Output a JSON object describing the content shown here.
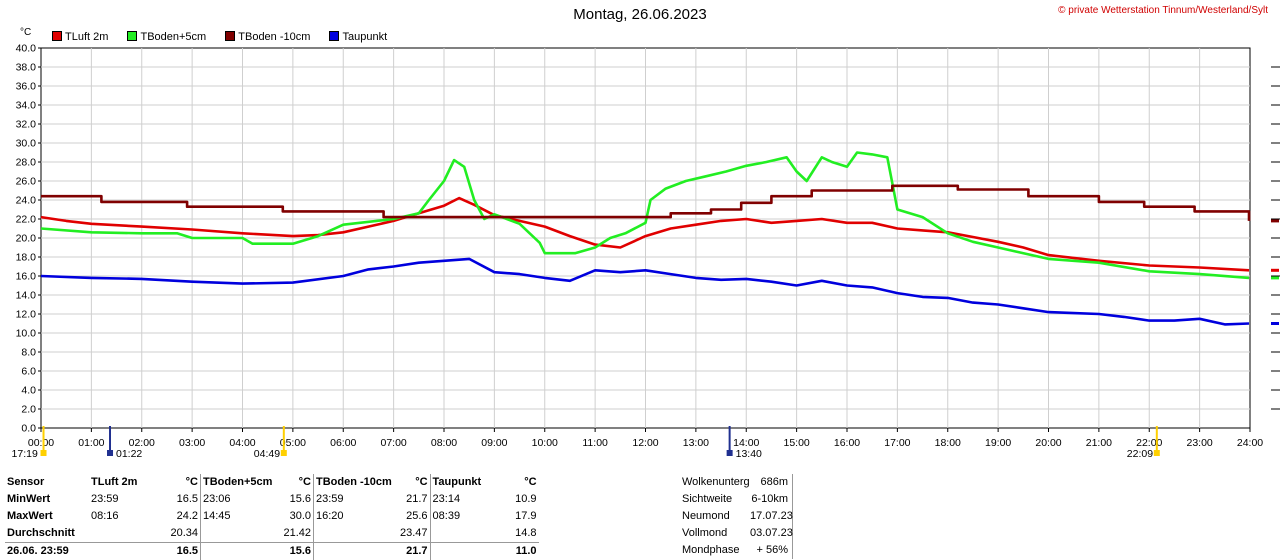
{
  "title": "Montag, 26.06.2023",
  "copyright": "© private Wetterstation Tinnum/Westerland/Sylt",
  "unit": "°C",
  "legend": [
    {
      "name": "TLuft 2m",
      "color": "#e00000"
    },
    {
      "name": "TBoden+5cm",
      "color": "#22ee22"
    },
    {
      "name": "TBoden -10cm",
      "color": "#800000"
    },
    {
      "name": "Taupunkt",
      "color": "#0000dd"
    }
  ],
  "chart_data": {
    "type": "line",
    "xlim": [
      0,
      24
    ],
    "ylim": [
      0,
      40
    ],
    "grid": true,
    "yticks": [
      "0.0",
      "2.0",
      "4.0",
      "6.0",
      "8.0",
      "10.0",
      "12.0",
      "14.0",
      "16.0",
      "18.0",
      "20.0",
      "22.0",
      "24.0",
      "26.0",
      "28.0",
      "30.0",
      "32.0",
      "34.0",
      "36.0",
      "38.0",
      "40.0"
    ],
    "xticks": [
      "00:00",
      "01:00",
      "02:00",
      "03:00",
      "04:00",
      "05:00",
      "06:00",
      "07:00",
      "08:00",
      "09:00",
      "10:00",
      "11:00",
      "12:00",
      "13:00",
      "14:00",
      "15:00",
      "16:00",
      "17:00",
      "18:00",
      "19:00",
      "20:00",
      "21:00",
      "22:00",
      "23:00",
      "24:00"
    ],
    "series": [
      {
        "name": "TLuft 2m",
        "color": "#e00000",
        "x": [
          0,
          0.5,
          1,
          2,
          3,
          4,
          5,
          5.5,
          6,
          6.5,
          7,
          7.5,
          8,
          8.3,
          8.6,
          9,
          9.5,
          10,
          10.5,
          11,
          11.5,
          12,
          12.5,
          13,
          13.5,
          14,
          14.5,
          15,
          15.5,
          16,
          16.5,
          17,
          17.5,
          18,
          18.5,
          19,
          19.5,
          20,
          21,
          22,
          23,
          23.98
        ],
        "y": [
          22.2,
          21.8,
          21.5,
          21.2,
          20.9,
          20.5,
          20.2,
          20.3,
          20.6,
          21.2,
          21.8,
          22.6,
          23.4,
          24.2,
          23.5,
          22.4,
          21.8,
          21.2,
          20.2,
          19.3,
          19.0,
          20.2,
          21.0,
          21.4,
          21.8,
          22.0,
          21.6,
          21.8,
          22.0,
          21.6,
          21.6,
          21.0,
          20.8,
          20.6,
          20.1,
          19.6,
          19.0,
          18.2,
          17.6,
          17.1,
          16.9,
          16.6
        ]
      },
      {
        "name": "TBoden+5cm",
        "color": "#22ee22",
        "x": [
          0,
          1,
          2,
          2.7,
          3,
          4,
          4.2,
          5,
          5.5,
          6,
          7,
          7.5,
          7.7,
          8,
          8.2,
          8.4,
          8.6,
          8.8,
          9,
          9.5,
          9.9,
          10,
          10.6,
          11,
          11.3,
          11.6,
          12,
          12.1,
          12.4,
          12.8,
          13.2,
          13.6,
          14,
          14.4,
          14.8,
          15,
          15.2,
          15.5,
          15.7,
          16,
          16.2,
          16.5,
          16.8,
          17,
          17.5,
          18,
          18.5,
          19,
          20,
          21,
          22,
          23,
          23.98
        ],
        "y": [
          21.0,
          20.6,
          20.5,
          20.5,
          20.0,
          20.0,
          19.4,
          19.4,
          20.2,
          21.4,
          22.0,
          22.6,
          24.0,
          26.0,
          28.2,
          27.5,
          24.0,
          22.0,
          22.5,
          21.5,
          19.5,
          18.4,
          18.4,
          19.0,
          20.0,
          20.5,
          21.6,
          24.0,
          25.2,
          26.0,
          26.5,
          27.0,
          27.6,
          28.0,
          28.5,
          27.0,
          26.0,
          28.5,
          28.0,
          27.5,
          29.0,
          28.8,
          28.5,
          23.0,
          22.2,
          20.5,
          19.6,
          19.0,
          17.8,
          17.4,
          16.5,
          16.2,
          15.8
        ]
      },
      {
        "name": "TBoden -10cm",
        "color": "#800000",
        "x": [
          0,
          1.2,
          1.2,
          2.9,
          2.9,
          4.8,
          4.8,
          6.8,
          6.8,
          12.5,
          12.5,
          13.3,
          13.3,
          13.9,
          13.9,
          14.5,
          14.5,
          15.3,
          15.3,
          16.9,
          16.9,
          18.2,
          18.2,
          19.6,
          19.6,
          21.0,
          21.0,
          21.9,
          21.9,
          22.9,
          22.9,
          23.98,
          23.98
        ],
        "y": [
          24.4,
          24.4,
          23.8,
          23.8,
          23.3,
          23.3,
          22.8,
          22.8,
          22.2,
          22.2,
          22.6,
          22.6,
          23.0,
          23.0,
          23.7,
          23.7,
          24.4,
          24.4,
          25.0,
          25.0,
          25.5,
          25.5,
          25.1,
          25.1,
          24.4,
          24.4,
          23.8,
          23.8,
          23.3,
          23.3,
          22.8,
          22.8,
          21.8
        ]
      },
      {
        "name": "Taupunkt",
        "color": "#0000dd",
        "x": [
          0,
          1,
          2,
          3,
          4,
          5,
          6,
          6.5,
          7,
          7.5,
          8,
          8.5,
          9,
          9.5,
          10,
          10.5,
          11,
          11.5,
          12,
          12.5,
          13,
          13.5,
          14,
          14.5,
          15,
          15.5,
          16,
          16.5,
          17,
          17.5,
          18,
          18.5,
          19,
          19.5,
          20,
          20.5,
          21,
          21.5,
          22,
          22.5,
          23,
          23.5,
          23.98
        ],
        "y": [
          16.0,
          15.8,
          15.7,
          15.4,
          15.2,
          15.3,
          16.0,
          16.7,
          17.0,
          17.4,
          17.6,
          17.8,
          16.4,
          16.2,
          15.8,
          15.5,
          16.6,
          16.4,
          16.6,
          16.2,
          15.8,
          15.6,
          15.7,
          15.4,
          15.0,
          15.5,
          15.0,
          14.8,
          14.2,
          13.8,
          13.7,
          13.2,
          13.0,
          12.6,
          12.2,
          12.1,
          12.0,
          11.7,
          11.3,
          11.3,
          11.5,
          10.9,
          11.0
        ]
      }
    ],
    "markers": [
      {
        "label": "17:19",
        "hour": 0.05,
        "color": "#ffd000"
      },
      {
        "label": "01:22",
        "hour": 1.37,
        "color": "#203090"
      },
      {
        "label": "04:49",
        "hour": 4.82,
        "color": "#ffd000"
      },
      {
        "label": "13:40",
        "hour": 13.67,
        "color": "#203090"
      },
      {
        "label": "22:09",
        "hour": 22.15,
        "color": "#ffd000"
      }
    ]
  },
  "stats": {
    "headers": [
      "Sensor",
      "TLuft 2m",
      "°C",
      "TBoden+5cm",
      "°C",
      "TBoden -10cm",
      "°C",
      "Taupunkt",
      "°C"
    ],
    "rows": [
      [
        "MinWert",
        "23:59",
        "16.5",
        "23:06",
        "15.6",
        "23:59",
        "21.7",
        "23:14",
        "10.9"
      ],
      [
        "MaxWert",
        "08:16",
        "24.2",
        "14:45",
        "30.0",
        "16:20",
        "25.6",
        "08:39",
        "17.9"
      ],
      [
        "Durchschnitt",
        "",
        "20.34",
        "",
        "21.42",
        "",
        "23.47",
        "",
        "14.8"
      ],
      [
        "26.06. 23:59",
        "",
        "16.5",
        "",
        "15.6",
        "",
        "21.7",
        "",
        "11.0"
      ]
    ]
  },
  "astro": [
    {
      "k": "Wolkenunterg",
      "v": "686m"
    },
    {
      "k": "Sichtweite",
      "v": "6-10km"
    },
    {
      "k": "Neumond",
      "v": "17.07.23"
    },
    {
      "k": "Vollmond",
      "v": "03.07.23"
    },
    {
      "k": "Mondphase",
      "v": "+ 56%"
    }
  ]
}
